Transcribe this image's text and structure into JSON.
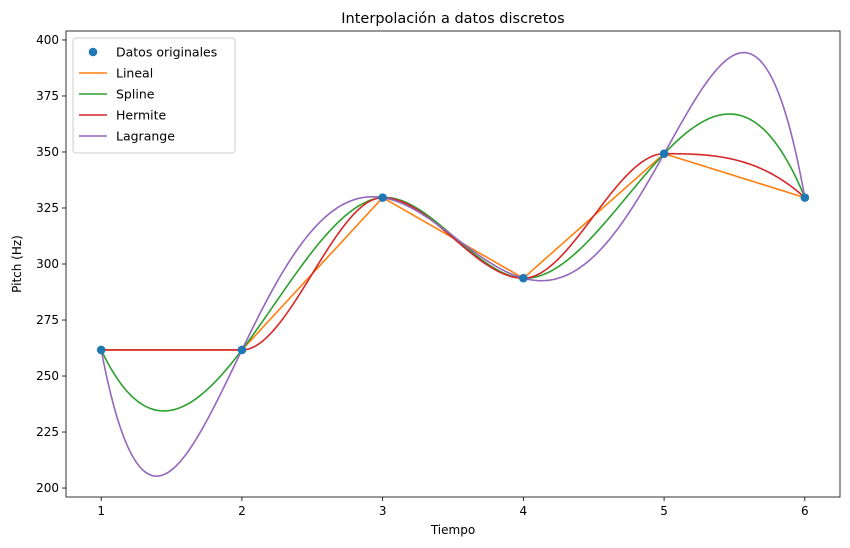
{
  "chart_data": {
    "type": "line",
    "title": "Interpolación a datos discretos",
    "xlabel": "Tiempo",
    "ylabel": "Pitch (Hz)",
    "xlim": [
      0.75,
      6.25
    ],
    "ylim": [
      196,
      404
    ],
    "xticks": [
      1,
      2,
      3,
      4,
      5,
      6
    ],
    "yticks": [
      200,
      225,
      250,
      275,
      300,
      325,
      350,
      375,
      400
    ],
    "grid": false,
    "legend_position": "top-left",
    "points": {
      "name": "Datos originales",
      "color": "#1f77b4",
      "x": [
        1,
        2,
        3,
        4,
        5,
        6
      ],
      "y": [
        261.63,
        261.63,
        329.63,
        293.66,
        349.23,
        329.63
      ]
    },
    "series": [
      {
        "name": "Lineal",
        "color": "#ff7f0e",
        "method": "linear"
      },
      {
        "name": "Spline",
        "color": "#2ca02c",
        "method": "spline"
      },
      {
        "name": "Hermite",
        "color": "#d62728",
        "method": "hermite"
      },
      {
        "name": "Lagrange",
        "color": "#9467bd",
        "method": "lagrange"
      }
    ]
  }
}
